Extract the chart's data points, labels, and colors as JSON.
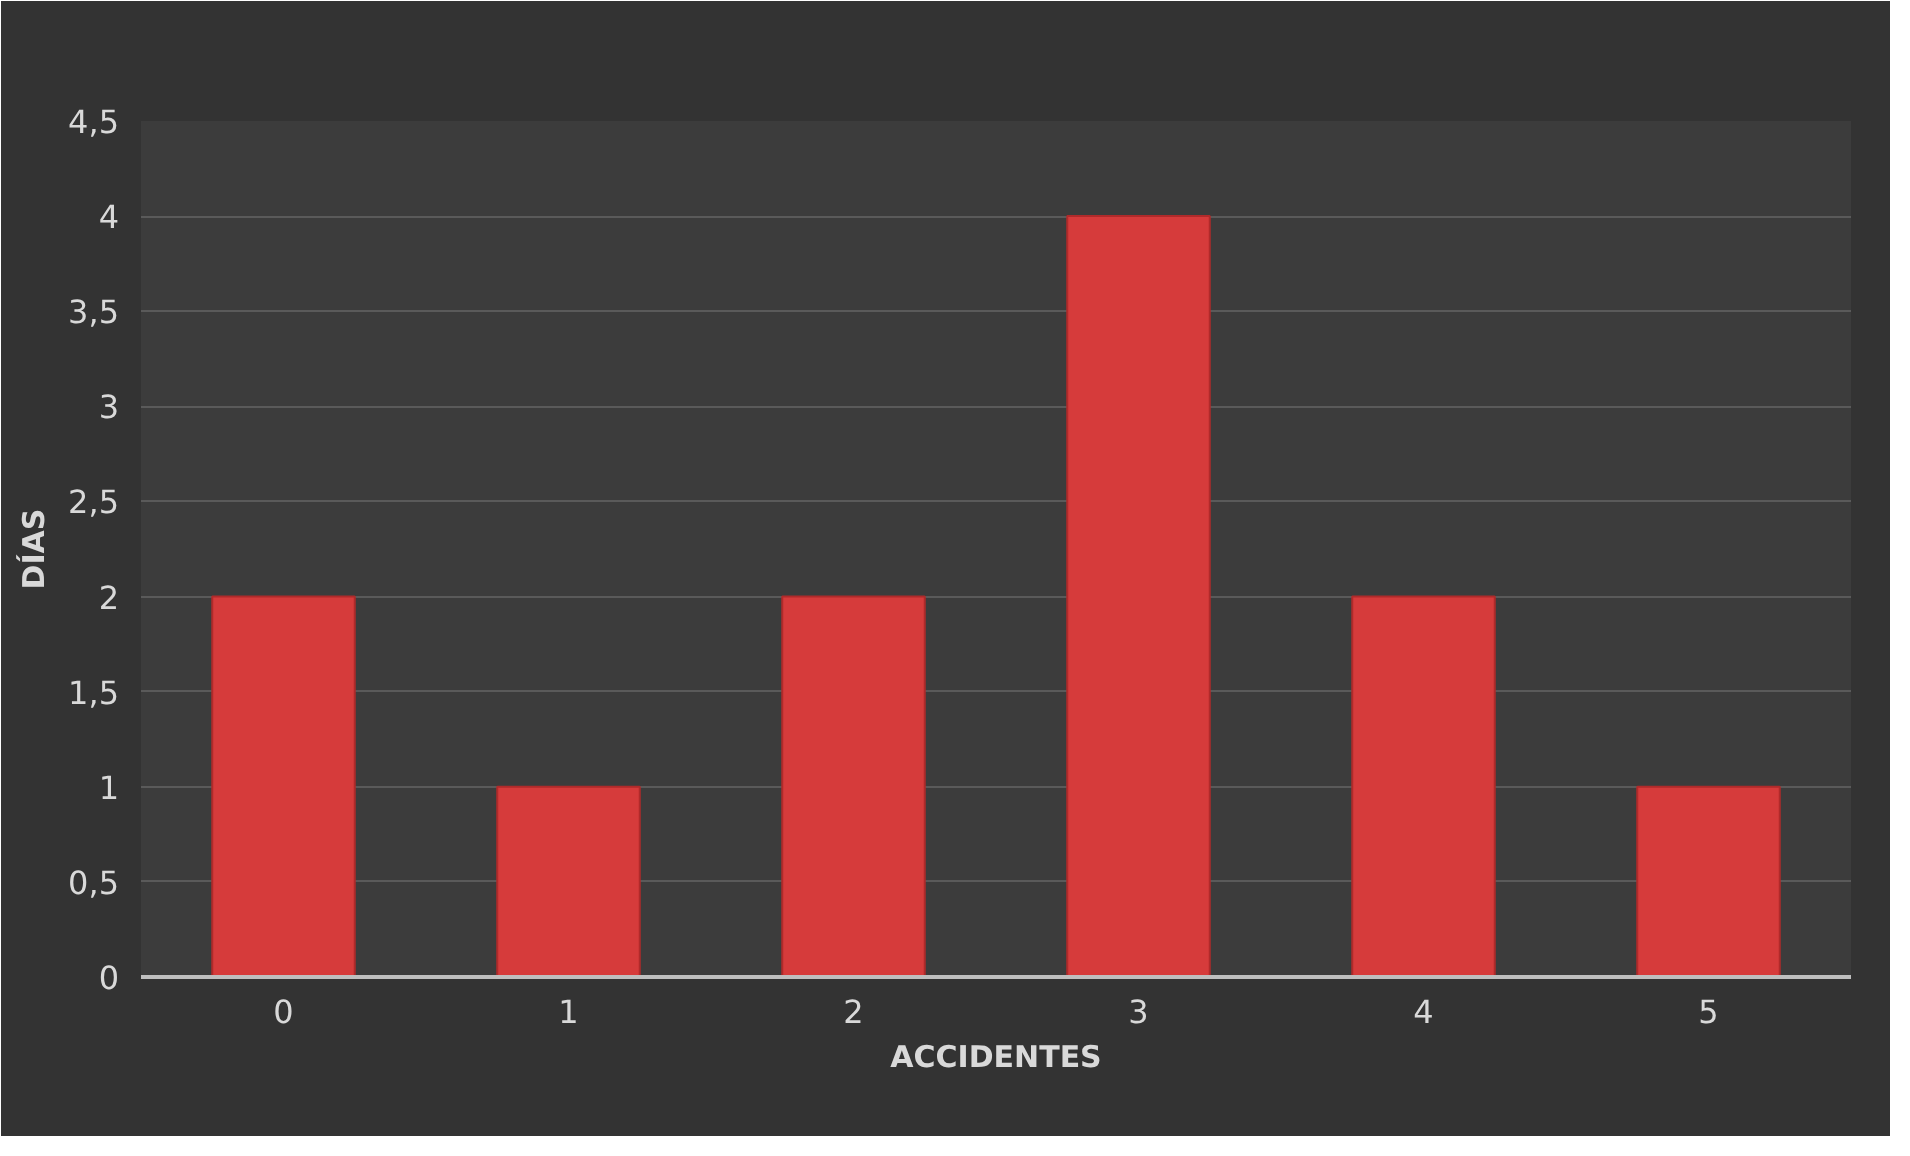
{
  "chart_data": {
    "type": "bar",
    "xlabel": "ACCIDENTES",
    "ylabel": "DÍAS",
    "categories": [
      "0",
      "1",
      "2",
      "3",
      "4",
      "5"
    ],
    "values": [
      2,
      1,
      2,
      4,
      2,
      1
    ],
    "color": "#d63b3b",
    "ylim": [
      0,
      4.5
    ],
    "yticks": [
      0,
      {
        "value": 0.5,
        "label": "0,5"
      },
      1,
      {
        "value": 1.5,
        "label": "1,5"
      },
      2,
      {
        "value": 2.5,
        "label": "2,5"
      },
      3,
      {
        "value": 3.5,
        "label": "3,5"
      },
      4,
      {
        "value": 4.5,
        "label": "4,5"
      }
    ],
    "grid": "y"
  }
}
